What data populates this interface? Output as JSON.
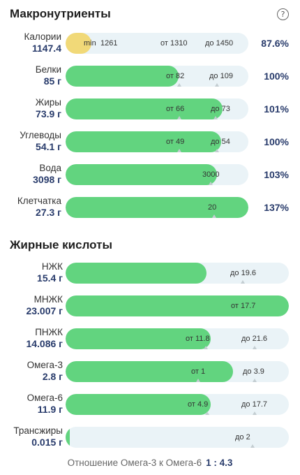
{
  "macro": {
    "title": "Макронутриенты",
    "help_icon": "?",
    "rows": [
      {
        "name": "Калории",
        "amount": "1147.4",
        "pct": "87.6%",
        "fill_pct": 14,
        "fill_color": "yellow",
        "marks": [
          {
            "text": "min",
            "tick": false
          },
          {
            "text": "1261",
            "tick": false
          },
          {
            "text": "от 1310",
            "tick": false
          },
          {
            "text": "до 1450",
            "tick": false
          }
        ]
      },
      {
        "name": "Белки",
        "amount": "85 г",
        "pct": "100%",
        "fill_pct": 62,
        "fill_color": "green",
        "marks": [
          {
            "text": "от 82",
            "tick": true
          },
          {
            "text": "до 109",
            "tick": true
          }
        ]
      },
      {
        "name": "Жиры",
        "amount": "73.9 г",
        "pct": "101%",
        "fill_pct": 86,
        "fill_color": "green",
        "marks": [
          {
            "text": "от 66",
            "tick": true
          },
          {
            "text": "до 73",
            "tick": true
          }
        ]
      },
      {
        "name": "Углеводы",
        "amount": "54.1 г",
        "pct": "100%",
        "fill_pct": 85,
        "fill_color": "green",
        "marks": [
          {
            "text": "от 49",
            "tick": true
          },
          {
            "text": "до 54",
            "tick": true
          }
        ]
      },
      {
        "name": "Вода",
        "amount": "3098 г",
        "pct": "103%",
        "fill_pct": 83,
        "fill_color": "green",
        "marks": [
          {
            "text": "3000",
            "tick": true
          }
        ]
      },
      {
        "name": "Клетчатка",
        "amount": "27.3 г",
        "pct": "137%",
        "fill_pct": 100,
        "fill_color": "green",
        "marks": [
          {
            "text": "20",
            "tick": true
          }
        ]
      }
    ]
  },
  "fatty": {
    "title": "Жирные кислоты",
    "rows": [
      {
        "name": "НЖК",
        "amount": "15.4 г",
        "fill_pct": 63,
        "fill_color": "green",
        "marks": [
          {
            "text": "до 19.6",
            "tick": true
          }
        ]
      },
      {
        "name": "МНЖК",
        "amount": "23.007 г",
        "fill_pct": 100,
        "fill_color": "green",
        "marks": [
          {
            "text": "от 17.7",
            "tick": true
          }
        ]
      },
      {
        "name": "ПНЖК",
        "amount": "14.086 г",
        "fill_pct": 65,
        "fill_color": "green",
        "marks": [
          {
            "text": "от 11.8",
            "tick": true
          },
          {
            "text": "до 21.6",
            "tick": true
          }
        ]
      },
      {
        "name": "Омега-3",
        "amount": "2.8 г",
        "fill_pct": 75,
        "fill_color": "green",
        "marks": [
          {
            "text": "от 1",
            "tick": true
          },
          {
            "text": "до 3.9",
            "tick": true
          }
        ]
      },
      {
        "name": "Омега-6",
        "amount": "11.9 г",
        "fill_pct": 65,
        "fill_color": "green",
        "marks": [
          {
            "text": "от 4.9",
            "tick": true
          },
          {
            "text": "до 17.7",
            "tick": true
          }
        ]
      },
      {
        "name": "Трансжиры",
        "amount": "0.015 г",
        "fill_pct": 1,
        "fill_color": "green",
        "marks": [
          {
            "text": "до 2",
            "tick": true
          }
        ]
      }
    ]
  },
  "ratio": {
    "label": "Отношение Омега-3 к Омега-6",
    "value": "1 : 4.3"
  }
}
